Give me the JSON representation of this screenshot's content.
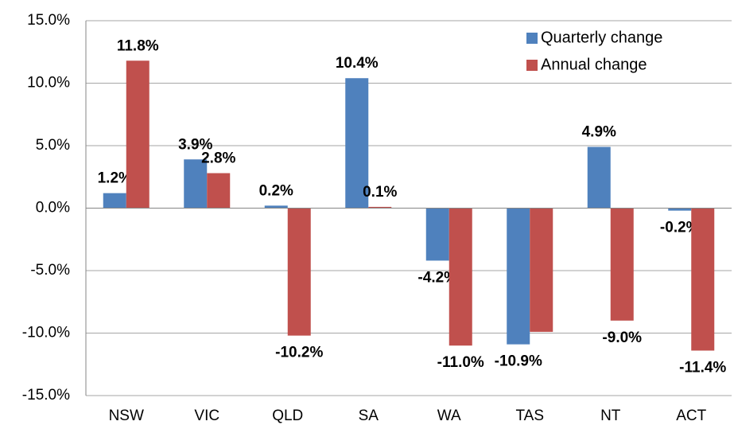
{
  "chart_data": {
    "type": "bar",
    "categories": [
      "NSW",
      "VIC",
      "QLD",
      "SA",
      "WA",
      "TAS",
      "NT",
      "ACT"
    ],
    "series": [
      {
        "name": "Quarterly change",
        "color": "#4f81bd",
        "values": [
          1.2,
          3.9,
          0.2,
          10.4,
          -4.2,
          -10.9,
          4.9,
          -0.2
        ],
        "value_labels": [
          "1.2%",
          "3.9%",
          "0.2%",
          "10.4%",
          "-4.2%",
          "-10.9%",
          "4.9%",
          "-0.2%"
        ]
      },
      {
        "name": "Annual change",
        "color": "#c0504d",
        "values": [
          11.8,
          2.8,
          -10.2,
          0.1,
          -11.0,
          -9.9,
          -9.0,
          -11.4
        ],
        "value_labels": [
          "11.8%",
          "2.8%",
          "-10.2%",
          "0.1%",
          "-11.0%",
          null,
          "-9.0%",
          "-11.4%"
        ]
      }
    ],
    "ylim": [
      -15,
      15
    ],
    "yticks": [
      {
        "value": -15,
        "label": "-15.0%"
      },
      {
        "value": -10,
        "label": "-10.0%"
      },
      {
        "value": -5,
        "label": "-5.0%"
      },
      {
        "value": 0,
        "label": "0.0%"
      },
      {
        "value": 5,
        "label": "5.0%"
      },
      {
        "value": 10,
        "label": "10.0%"
      },
      {
        "value": 15,
        "label": "15.0%"
      }
    ],
    "grid": true,
    "legend": "top-right"
  }
}
